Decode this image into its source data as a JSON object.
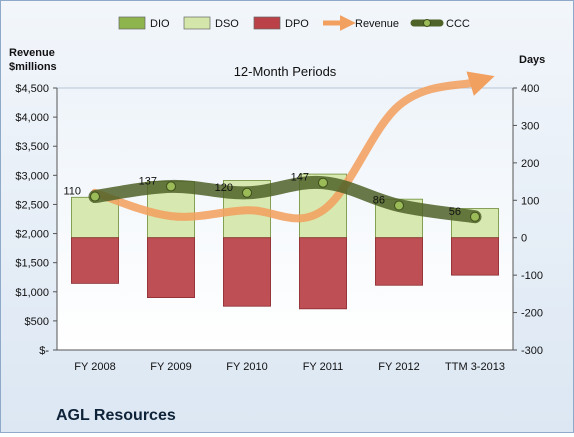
{
  "chart_data": {
    "type": "bar",
    "title": "12-Month Periods",
    "left_axis_title_lines": [
      "Revenue",
      "$millions"
    ],
    "right_axis_title": "Days",
    "categories": [
      "FY 2008",
      "FY 2009",
      "FY 2010",
      "FY 2011",
      "FY 2012",
      "TTM 3-2013"
    ],
    "series": [
      {
        "name": "DIO",
        "type": "stacked-bar",
        "color": "#8db44d",
        "values": [
          0,
          0,
          0,
          0,
          0,
          0
        ]
      },
      {
        "name": "DSO",
        "type": "stacked-bar",
        "color": "#d4e6a9",
        "values": [
          108,
          150,
          153,
          170,
          103,
          78
        ]
      },
      {
        "name": "DPO",
        "type": "negative-bar",
        "color": "#b94147",
        "values": [
          -122,
          -160,
          -183,
          -190,
          -127,
          -100
        ]
      },
      {
        "name": "Revenue",
        "type": "line",
        "axis": "left",
        "color": "#f2a060",
        "values": [
          2700,
          2300,
          2400,
          2400,
          4200,
          4600
        ]
      },
      {
        "name": "CCC",
        "type": "line",
        "axis": "right",
        "color": "#4f6228",
        "values": [
          110,
          137,
          120,
          147,
          86,
          56
        ]
      }
    ],
    "ccc_labels": [
      "110",
      "137",
      "120",
      "147",
      "86",
      "56"
    ],
    "left_axis": {
      "min": 0,
      "max": 4500,
      "step": 500,
      "format": "currency"
    },
    "right_axis": {
      "min": -300,
      "max": 400,
      "step": 100
    },
    "ylim_left": [
      0,
      4500
    ],
    "ylim_right": [
      -300,
      400
    ],
    "grid": false,
    "legend_position": "top"
  },
  "footer": {
    "company": "AGL Resources"
  }
}
